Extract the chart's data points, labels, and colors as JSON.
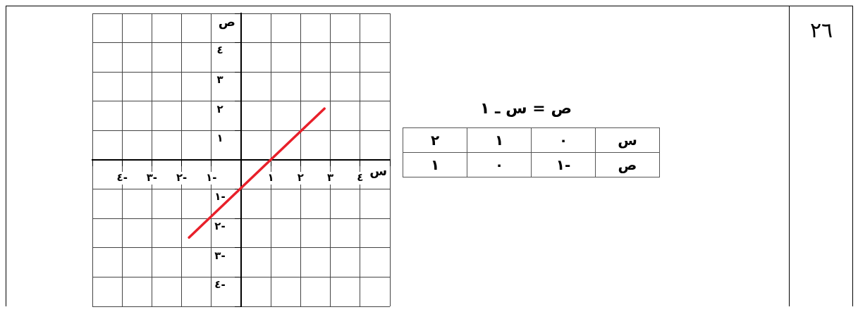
{
  "chart_data": {
    "type": "line",
    "xlabel": "س",
    "ylabel": "ص",
    "x": [
      -1.75,
      2.8
    ],
    "series": [
      {
        "color": "#e8202a",
        "values": [
          -2.65,
          1.75
        ]
      }
    ],
    "xlim": [
      -5,
      5
    ],
    "ylim": [
      -5,
      5
    ],
    "xticks": [
      {
        "value": -5,
        "label": null
      },
      {
        "value": -4,
        "label": "٤-"
      },
      {
        "value": -3,
        "label": "٣-"
      },
      {
        "value": -2,
        "label": "٢-"
      },
      {
        "value": -1,
        "label": "١-"
      },
      {
        "value": 0,
        "label": null
      },
      {
        "value": 1,
        "label": "١"
      },
      {
        "value": 2,
        "label": "٢"
      },
      {
        "value": 3,
        "label": "٣"
      },
      {
        "value": 4,
        "label": "٤"
      },
      {
        "value": 5,
        "label": null
      }
    ],
    "yticks": [
      {
        "value": -5,
        "label": null
      },
      {
        "value": -4,
        "label": "٤-"
      },
      {
        "value": -3,
        "label": "٣-"
      },
      {
        "value": -2,
        "label": "٢-"
      },
      {
        "value": -1,
        "label": "١-"
      },
      {
        "value": 0,
        "label": null
      },
      {
        "value": 1,
        "label": "١"
      },
      {
        "value": 2,
        "label": "٢"
      },
      {
        "value": 3,
        "label": "٣"
      },
      {
        "value": 4,
        "label": "٤"
      },
      {
        "value": 5,
        "label": null
      }
    ],
    "grid": true,
    "marker": "none",
    "line_style": "solid",
    "annotations": [
      "٢٦",
      "ص = س ـ ١",
      "س",
      "٠",
      "١",
      "٢",
      "ص",
      "١-",
      "٠",
      "١"
    ]
  }
}
